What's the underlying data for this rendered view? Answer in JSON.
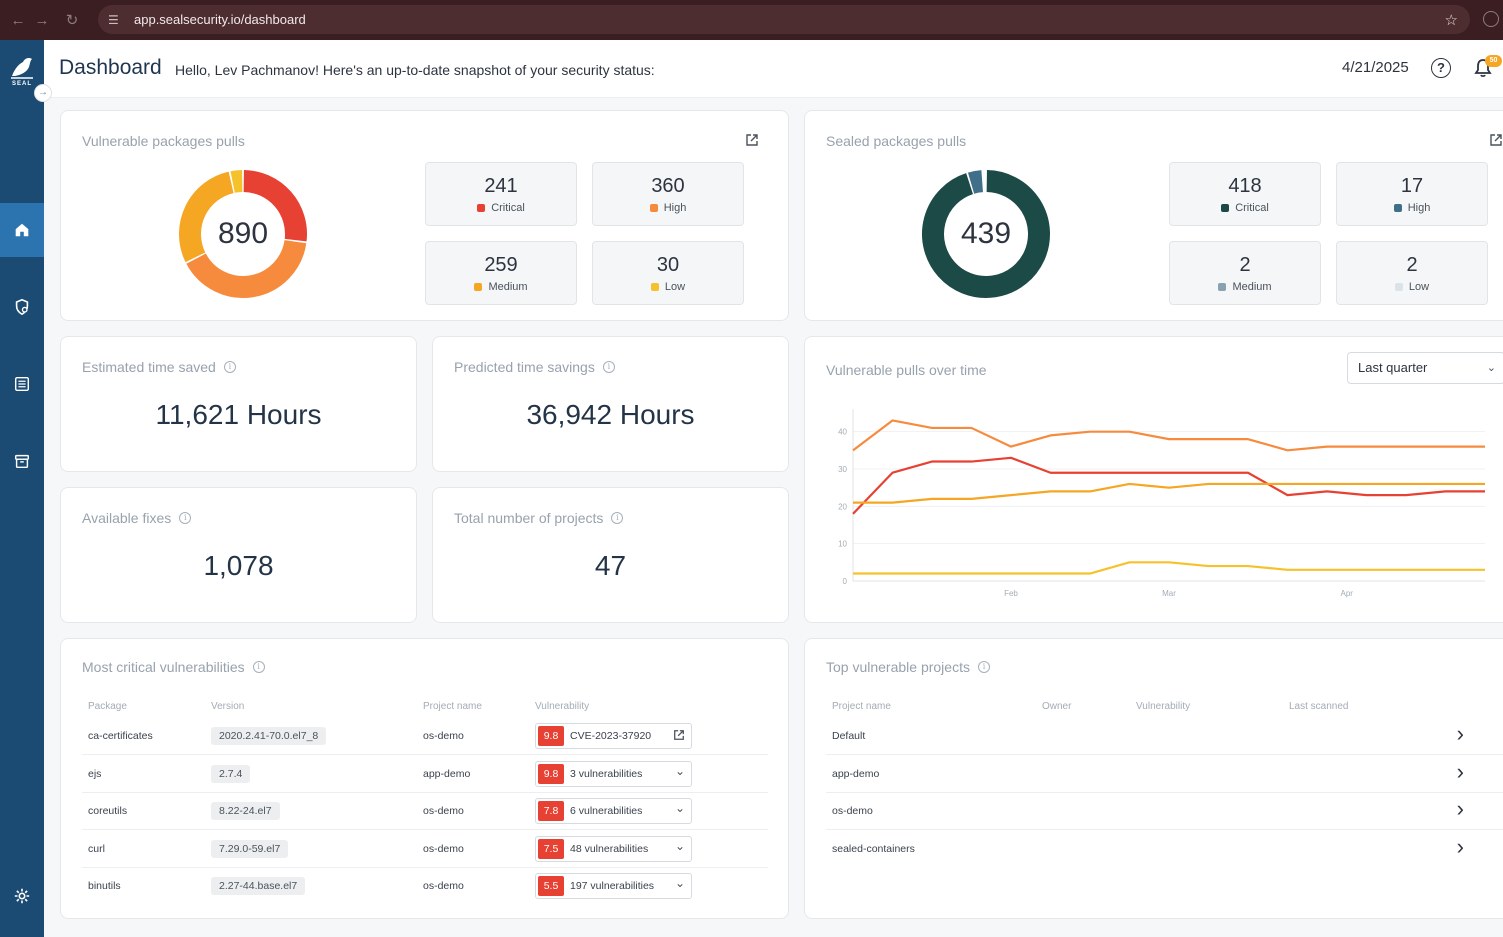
{
  "browser": {
    "url": "app.sealsecurity.io/dashboard"
  },
  "sidebar": {
    "logo_text": "SEAL",
    "items": [
      {
        "name": "home-icon",
        "active": true
      },
      {
        "name": "shield-search-icon",
        "active": false
      },
      {
        "name": "list-icon",
        "active": false
      },
      {
        "name": "package-icon",
        "active": false
      },
      {
        "name": "gear-icon",
        "active": false
      }
    ]
  },
  "header": {
    "title": "Dashboard",
    "greeting": "Hello, Lev Pachmanov! Here's an up-to-date snapshot of your security status:",
    "date": "4/21/2025",
    "help": "?",
    "notification_badge": "50"
  },
  "vulnerable_pulls": {
    "title": "Vulnerable packages pulls",
    "total": "890",
    "stats": [
      {
        "value": "241",
        "label": "Critical",
        "color": "#e74133"
      },
      {
        "value": "360",
        "label": "High",
        "color": "#f68b3e"
      },
      {
        "value": "259",
        "label": "Medium",
        "color": "#f5a623"
      },
      {
        "value": "30",
        "label": "Low",
        "color": "#f6c22b"
      }
    ]
  },
  "sealed_pulls": {
    "title": "Sealed packages pulls",
    "total": "439",
    "stats": [
      {
        "value": "418",
        "label": "Critical",
        "color": "#1b4a47"
      },
      {
        "value": "17",
        "label": "High",
        "color": "#3f6f89"
      },
      {
        "value": "2",
        "label": "Medium",
        "color": "#8aa1b1"
      },
      {
        "value": "2",
        "label": "Low",
        "color": "#dbe3e8"
      }
    ]
  },
  "metrics": {
    "time_saved": {
      "title": "Estimated time saved",
      "value": "11,621 Hours"
    },
    "predicted_savings": {
      "title": "Predicted time savings",
      "value": "36,942 Hours"
    },
    "available_fixes": {
      "title": "Available fixes",
      "value": "1,078"
    },
    "total_projects": {
      "title": "Total number of projects",
      "value": "47"
    }
  },
  "pulls_over_time": {
    "title": "Vulnerable pulls over time",
    "period": "Last quarter"
  },
  "chart_data": {
    "type": "line",
    "title": "Vulnerable pulls over time",
    "x": [
      0,
      1,
      2,
      3,
      4,
      5,
      6,
      7,
      8,
      9,
      10,
      11,
      12,
      13,
      14,
      15,
      16
    ],
    "xticks": [
      "Feb",
      "Mar",
      "Apr"
    ],
    "xtick_positions": [
      4,
      8,
      12.5
    ],
    "yticks": [
      "0",
      "10",
      "20",
      "30",
      "40"
    ],
    "ylim": [
      0,
      45
    ],
    "grid": true,
    "series": [
      {
        "color": "#f68b3e",
        "values": [
          35,
          43,
          41,
          41,
          36,
          39,
          40,
          40,
          38,
          38,
          38,
          35,
          36,
          36,
          36,
          36,
          36
        ]
      },
      {
        "color": "#e74133",
        "values": [
          18,
          29,
          32,
          32,
          33,
          29,
          29,
          29,
          29,
          29,
          29,
          23,
          24,
          23,
          23,
          24,
          24
        ]
      },
      {
        "color": "#f5a623",
        "values": [
          21,
          21,
          22,
          22,
          23,
          24,
          24,
          26,
          25,
          26,
          26,
          26,
          26,
          26,
          26,
          26,
          26
        ]
      },
      {
        "color": "#f6c22b",
        "values": [
          2,
          2,
          2,
          2,
          2,
          2,
          2,
          5,
          5,
          4,
          4,
          3,
          3,
          3,
          3,
          3,
          3
        ]
      }
    ]
  },
  "critical_vulns": {
    "title": "Most critical vulnerabilities",
    "headers": [
      "Package",
      "Version",
      "Project name",
      "Vulnerability"
    ],
    "rows": [
      {
        "package": "ca-certificates",
        "version": "2020.2.41-70.0.el7_8",
        "project": "os-demo",
        "score": "9.8",
        "vuln": "CVE-2023-37920",
        "icon": "external-link-icon"
      },
      {
        "package": "ejs",
        "version": "2.7.4",
        "project": "app-demo",
        "score": "9.8",
        "vuln": "3 vulnerabilities",
        "icon": "chevron-down-icon"
      },
      {
        "package": "coreutils",
        "version": "8.22-24.el7",
        "project": "os-demo",
        "score": "7.8",
        "vuln": "6 vulnerabilities",
        "icon": "chevron-down-icon"
      },
      {
        "package": "curl",
        "version": "7.29.0-59.el7",
        "project": "os-demo",
        "score": "7.5",
        "vuln": "48 vulnerabilities",
        "icon": "chevron-down-icon"
      },
      {
        "package": "binutils",
        "version": "2.27-44.base.el7",
        "project": "os-demo",
        "score": "5.5",
        "vuln": "197 vulnerabilities",
        "icon": "chevron-down-icon"
      }
    ]
  },
  "top_projects": {
    "title": "Top vulnerable projects",
    "headers": [
      "Project name",
      "Owner",
      "Vulnerability",
      "Last scanned"
    ],
    "rows": [
      {
        "project": "Default"
      },
      {
        "project": "app-demo"
      },
      {
        "project": "os-demo"
      },
      {
        "project": "sealed-containers"
      }
    ]
  }
}
